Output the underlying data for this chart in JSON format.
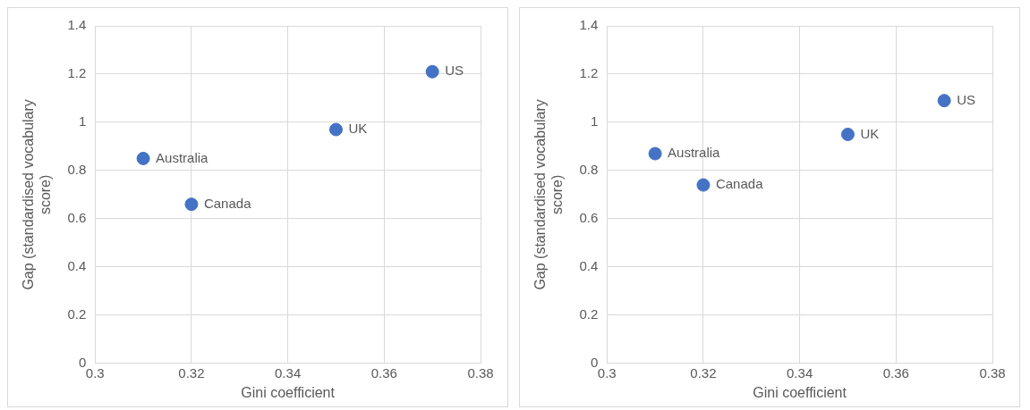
{
  "chart_data": [
    {
      "type": "scatter",
      "x": [
        0.31,
        0.32,
        0.35,
        0.37
      ],
      "values": [
        0.85,
        0.66,
        0.97,
        1.21
      ],
      "color": "#4472c4",
      "marker": "circle",
      "xlabel": "Gini coefficient",
      "ylabel": "Gap (standardised vocabulary score)",
      "xlim": [
        0.3,
        0.38
      ],
      "xticks": [
        0.3,
        0.32,
        0.34,
        0.36,
        0.38
      ],
      "ylim": [
        0,
        1.4
      ],
      "yticks": [
        0,
        0.2,
        0.4,
        0.6,
        0.8,
        1,
        1.2,
        1.4
      ],
      "grid": true,
      "annotations": [
        {
          "text": "Australia",
          "x": 0.31,
          "y": 0.85
        },
        {
          "text": "Canada",
          "x": 0.32,
          "y": 0.66
        },
        {
          "text": "UK",
          "x": 0.35,
          "y": 0.97
        },
        {
          "text": "US",
          "x": 0.37,
          "y": 1.21
        }
      ]
    },
    {
      "type": "scatter",
      "x": [
        0.31,
        0.32,
        0.35,
        0.37
      ],
      "values": [
        0.87,
        0.74,
        0.95,
        1.09
      ],
      "color": "#4472c4",
      "marker": "circle",
      "xlabel": "Gini coefficient",
      "ylabel": "Gap (standardised vocabulary score)",
      "xlim": [
        0.3,
        0.38
      ],
      "xticks": [
        0.3,
        0.32,
        0.34,
        0.36,
        0.38
      ],
      "ylim": [
        0,
        1.4
      ],
      "yticks": [
        0,
        0.2,
        0.4,
        0.6,
        0.8,
        1,
        1.2,
        1.4
      ],
      "grid": true,
      "annotations": [
        {
          "text": "Australia",
          "x": 0.31,
          "y": 0.87
        },
        {
          "text": "Canada",
          "x": 0.32,
          "y": 0.74
        },
        {
          "text": "UK",
          "x": 0.35,
          "y": 0.95
        },
        {
          "text": "US",
          "x": 0.37,
          "y": 1.09
        }
      ]
    }
  ]
}
